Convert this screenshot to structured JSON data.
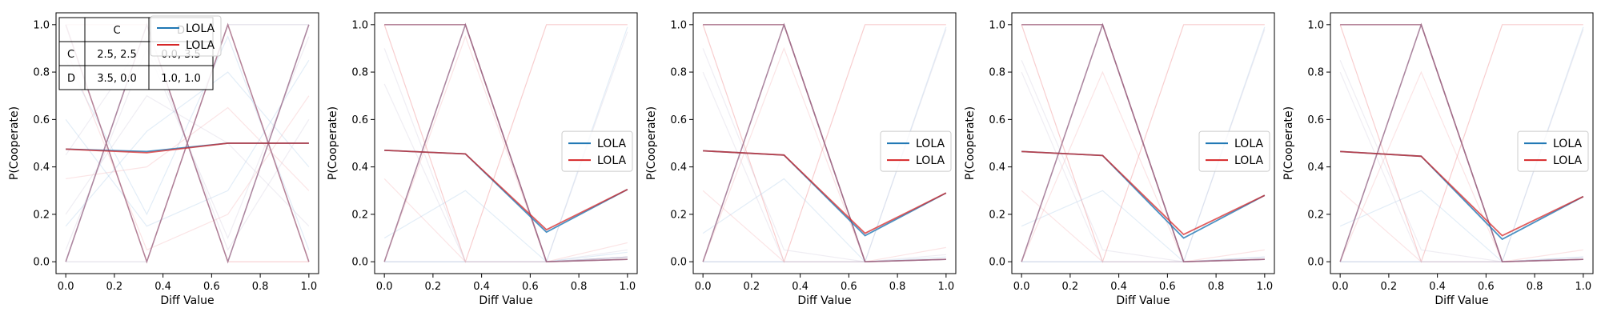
{
  "colors": {
    "lola_blue": "#1f77b4",
    "lola_red": "#d62728",
    "faint_blue": "#9ec2e6",
    "faint_red": "#f2a6a8",
    "faint_gray": "#c9c3d6",
    "overlap_purple": "#a06a86"
  },
  "chart_data": [
    {
      "type": "line",
      "xlabel": "Diff Value",
      "ylabel": "P(Cooperate)",
      "xlim": [
        -0.04,
        1.04
      ],
      "ylim": [
        -0.05,
        1.05
      ],
      "xticks": [
        "0.0",
        "0.2",
        "0.4",
        "0.6",
        "0.8",
        "1.0"
      ],
      "yticks": [
        "0.0",
        "0.2",
        "0.4",
        "0.6",
        "0.8",
        "1.0"
      ],
      "x": [
        0,
        0.3333,
        0.6667,
        1.0
      ],
      "legend": {
        "position": "upper-center",
        "entries": [
          {
            "label": "LOLA",
            "color": "#1f77b4"
          },
          {
            "label": "LOLA",
            "color": "#d62728"
          }
        ]
      },
      "series": [
        {
          "name": "LOLA",
          "color": "#1f77b4",
          "values": [
            0.475,
            0.465,
            0.5,
            0.5
          ]
        },
        {
          "name": "LOLA",
          "color": "#d62728",
          "values": [
            0.475,
            0.46,
            0.5,
            0.5
          ]
        }
      ],
      "background_lines": [
        [
          1.0,
          0.0,
          1.0,
          0.0
        ],
        [
          0.0,
          1.0,
          0.0,
          1.0
        ],
        [
          0.0,
          0.0,
          1.0,
          1.0
        ],
        [
          1.0,
          1.0,
          0.0,
          0.0
        ],
        [
          0.85,
          0.2,
          0.95,
          0.05
        ],
        [
          0.05,
          0.9,
          0.1,
          0.95
        ],
        [
          0.35,
          0.4,
          0.65,
          0.3
        ],
        [
          0.6,
          0.15,
          0.3,
          0.85
        ],
        [
          0.2,
          0.7,
          0.5,
          0.15
        ],
        [
          0.9,
          0.05,
          0.2,
          0.7
        ],
        [
          0.15,
          0.55,
          0.8,
          0.4
        ],
        [
          0.45,
          0.95,
          0.05,
          0.6
        ]
      ],
      "payoff_table": {
        "header": [
          "",
          "C",
          "D"
        ],
        "rows": [
          [
            "C",
            "2.5, 2.5",
            "0.0, 3.5"
          ],
          [
            "D",
            "3.5, 0.0",
            "1.0, 1.0"
          ]
        ]
      }
    },
    {
      "type": "line",
      "xlabel": "Diff Value",
      "ylabel": "P(Cooperate)",
      "xlim": [
        -0.04,
        1.04
      ],
      "ylim": [
        -0.05,
        1.05
      ],
      "xticks": [
        "0.0",
        "0.2",
        "0.4",
        "0.6",
        "0.8",
        "1.0"
      ],
      "yticks": [
        "0.0",
        "0.2",
        "0.4",
        "0.6",
        "0.8",
        "1.0"
      ],
      "x": [
        0,
        0.3333,
        0.6667,
        1.0
      ],
      "legend": {
        "position": "center-right",
        "entries": [
          {
            "label": "LOLA",
            "color": "#1f77b4"
          },
          {
            "label": "LOLA",
            "color": "#d62728"
          }
        ]
      },
      "series": [
        {
          "name": "LOLA",
          "color": "#1f77b4",
          "values": [
            0.47,
            0.455,
            0.125,
            0.305
          ]
        },
        {
          "name": "LOLA",
          "color": "#d62728",
          "values": [
            0.47,
            0.455,
            0.135,
            0.305
          ]
        }
      ],
      "background_lines": [
        [
          1.0,
          1.0,
          0.0,
          0.02
        ],
        [
          0.0,
          1.0,
          0.0,
          0.02
        ],
        [
          0.0,
          0.0,
          0.0,
          0.02
        ],
        [
          1.0,
          0.0,
          1.0,
          1.0
        ],
        [
          0.0,
          0.0,
          0.0,
          0.99
        ],
        [
          0.9,
          0.0,
          0.0,
          0.05
        ],
        [
          0.35,
          0.0,
          0.0,
          0.08
        ],
        [
          0.1,
          0.3,
          0.0,
          0.04
        ],
        [
          0.75,
          0.0,
          0.0,
          0.97
        ],
        [
          0.0,
          0.95,
          0.0,
          0.01
        ]
      ]
    },
    {
      "type": "line",
      "xlabel": "Diff Value",
      "ylabel": "P(Cooperate)",
      "xlim": [
        -0.04,
        1.04
      ],
      "ylim": [
        -0.05,
        1.05
      ],
      "xticks": [
        "0.0",
        "0.2",
        "0.4",
        "0.6",
        "0.8",
        "1.0"
      ],
      "yticks": [
        "0.0",
        "0.2",
        "0.4",
        "0.6",
        "0.8",
        "1.0"
      ],
      "x": [
        0,
        0.3333,
        0.6667,
        1.0
      ],
      "legend": {
        "position": "center-right",
        "entries": [
          {
            "label": "LOLA",
            "color": "#1f77b4"
          },
          {
            "label": "LOLA",
            "color": "#d62728"
          }
        ]
      },
      "series": [
        {
          "name": "LOLA",
          "color": "#1f77b4",
          "values": [
            0.468,
            0.45,
            0.11,
            0.29
          ]
        },
        {
          "name": "LOLA",
          "color": "#d62728",
          "values": [
            0.468,
            0.45,
            0.12,
            0.29
          ]
        }
      ],
      "background_lines": [
        [
          1.0,
          1.0,
          0.0,
          0.01
        ],
        [
          0.0,
          1.0,
          0.0,
          0.01
        ],
        [
          0.0,
          0.0,
          0.0,
          0.01
        ],
        [
          1.0,
          0.0,
          1.0,
          1.0
        ],
        [
          0.0,
          0.0,
          0.0,
          0.99
        ],
        [
          0.9,
          0.05,
          0.0,
          0.03
        ],
        [
          0.3,
          0.0,
          0.0,
          0.06
        ],
        [
          0.12,
          0.35,
          0.0,
          0.02
        ],
        [
          0.8,
          0.0,
          0.0,
          0.98
        ],
        [
          0.0,
          0.9,
          0.0,
          0.01
        ]
      ]
    },
    {
      "type": "line",
      "xlabel": "Diff Value",
      "ylabel": "P(Cooperate)",
      "xlim": [
        -0.04,
        1.04
      ],
      "ylim": [
        -0.05,
        1.05
      ],
      "xticks": [
        "0.0",
        "0.2",
        "0.4",
        "0.6",
        "0.8",
        "1.0"
      ],
      "yticks": [
        "0.0",
        "0.2",
        "0.4",
        "0.6",
        "0.8",
        "1.0"
      ],
      "x": [
        0,
        0.3333,
        0.6667,
        1.0
      ],
      "legend": {
        "position": "center-right",
        "entries": [
          {
            "label": "LOLA",
            "color": "#1f77b4"
          },
          {
            "label": "LOLA",
            "color": "#d62728"
          }
        ]
      },
      "series": [
        {
          "name": "LOLA",
          "color": "#1f77b4",
          "values": [
            0.465,
            0.448,
            0.1,
            0.28
          ]
        },
        {
          "name": "LOLA",
          "color": "#d62728",
          "values": [
            0.465,
            0.448,
            0.115,
            0.28
          ]
        }
      ],
      "background_lines": [
        [
          1.0,
          1.0,
          0.0,
          0.01
        ],
        [
          0.0,
          1.0,
          0.0,
          0.01
        ],
        [
          0.0,
          0.0,
          0.0,
          0.01
        ],
        [
          1.0,
          0.0,
          1.0,
          1.0
        ],
        [
          0.0,
          0.0,
          0.0,
          0.99
        ],
        [
          0.85,
          0.05,
          0.0,
          0.02
        ],
        [
          0.3,
          0.0,
          0.0,
          0.05
        ],
        [
          0.15,
          0.3,
          0.0,
          0.02
        ],
        [
          0.8,
          0.0,
          0.0,
          0.98
        ],
        [
          0.0,
          0.8,
          0.0,
          0.01
        ]
      ]
    },
    {
      "type": "line",
      "xlabel": "Diff Value",
      "ylabel": "P(Cooperate)",
      "xlim": [
        -0.04,
        1.04
      ],
      "ylim": [
        -0.05,
        1.05
      ],
      "xticks": [
        "0.0",
        "0.2",
        "0.4",
        "0.6",
        "0.8",
        "1.0"
      ],
      "yticks": [
        "0.0",
        "0.2",
        "0.4",
        "0.6",
        "0.8",
        "1.0"
      ],
      "x": [
        0,
        0.3333,
        0.6667,
        1.0
      ],
      "legend": {
        "position": "center-right",
        "entries": [
          {
            "label": "LOLA",
            "color": "#1f77b4"
          },
          {
            "label": "LOLA",
            "color": "#d62728"
          }
        ]
      },
      "series": [
        {
          "name": "LOLA",
          "color": "#1f77b4",
          "values": [
            0.465,
            0.445,
            0.095,
            0.275
          ]
        },
        {
          "name": "LOLA",
          "color": "#d62728",
          "values": [
            0.465,
            0.445,
            0.11,
            0.275
          ]
        }
      ],
      "background_lines": [
        [
          1.0,
          1.0,
          0.0,
          0.01
        ],
        [
          0.0,
          1.0,
          0.0,
          0.01
        ],
        [
          0.0,
          0.0,
          0.0,
          0.01
        ],
        [
          1.0,
          0.0,
          1.0,
          1.0
        ],
        [
          0.0,
          0.0,
          0.0,
          0.99
        ],
        [
          0.85,
          0.05,
          0.0,
          0.02
        ],
        [
          0.3,
          0.0,
          0.0,
          0.05
        ],
        [
          0.15,
          0.3,
          0.0,
          0.02
        ],
        [
          0.8,
          0.0,
          0.0,
          0.98
        ],
        [
          0.0,
          0.8,
          0.0,
          0.01
        ]
      ]
    }
  ]
}
